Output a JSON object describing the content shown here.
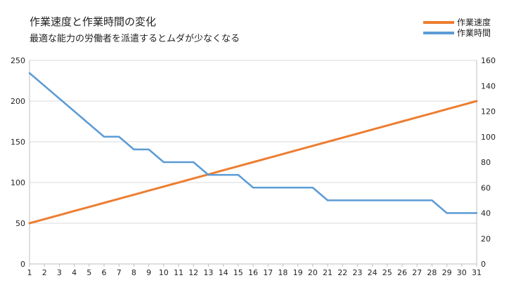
{
  "chart_data": {
    "type": "line",
    "title": "作業速度と作業時間の変化",
    "subtitle": "最適な能力の労働者を派遣するとムダが少なくなる",
    "x": [
      1,
      2,
      3,
      4,
      5,
      6,
      7,
      8,
      9,
      10,
      11,
      12,
      13,
      14,
      15,
      16,
      17,
      18,
      19,
      20,
      21,
      22,
      23,
      24,
      25,
      26,
      27,
      28,
      29,
      30,
      31
    ],
    "xlim": [
      1,
      31
    ],
    "y_left": {
      "ylim": [
        0,
        250
      ],
      "ticks": [
        0,
        50,
        100,
        150,
        200,
        250
      ]
    },
    "y_right": {
      "ylim": [
        0,
        160
      ],
      "ticks": [
        0,
        20,
        40,
        60,
        80,
        100,
        120,
        140,
        160
      ]
    },
    "series": [
      {
        "name": "作業速度",
        "axis": "left",
        "color": "#ED7D31",
        "values": [
          50,
          55,
          60,
          65,
          70,
          75,
          80,
          85,
          90,
          95,
          100,
          105,
          110,
          115,
          120,
          125,
          130,
          135,
          140,
          145,
          150,
          155,
          160,
          165,
          170,
          175,
          180,
          185,
          190,
          195,
          200
        ]
      },
      {
        "name": "作業時間",
        "axis": "right",
        "color": "#5B9BD5",
        "values": [
          150,
          140,
          130,
          120,
          110,
          100,
          100,
          90,
          90,
          80,
          80,
          80,
          70,
          70,
          70,
          60,
          60,
          60,
          60,
          60,
          50,
          50,
          50,
          50,
          50,
          50,
          50,
          50,
          40,
          40,
          40
        ]
      }
    ],
    "grid": true,
    "legend_position": "top-right"
  }
}
